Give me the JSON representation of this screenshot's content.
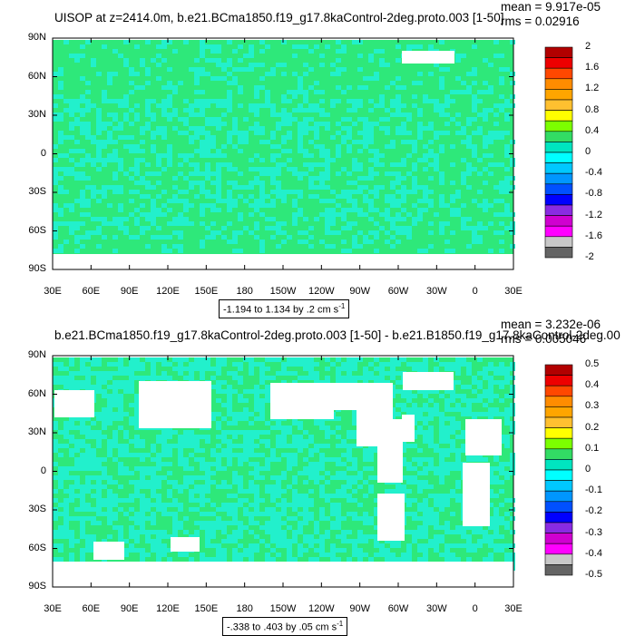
{
  "chart_data": [
    {
      "type": "heatmap",
      "title": "UISOP at z=2414.0m, b.e21.BCma1850.f19_g17.8kaControl-2deg.proto.003 [1-50]",
      "stat_mean": "mean = 9.917e-05",
      "stat_rms": "rms = 0.02916",
      "y_ticks": [
        "90N",
        "60N",
        "30N",
        "0",
        "30S",
        "60S",
        "90S"
      ],
      "x_ticks": [
        "30E",
        "60E",
        "90E",
        "120E",
        "150E",
        "180",
        "150W",
        "120W",
        "90W",
        "60W",
        "30W",
        "0",
        "30E"
      ],
      "colorbar_labels": [
        "2",
        "1.6",
        "1.2",
        "0.8",
        "0.4",
        "0",
        "-0.4",
        "-0.8",
        "-1.2",
        "-1.6",
        "-2"
      ],
      "colorbar_levels": [
        2,
        1.6,
        1.2,
        0.8,
        0.4,
        0,
        -0.4,
        -0.8,
        -1.2,
        -1.6,
        -2
      ],
      "contour_info": "-1.194 to 1.134 by .2 cm s",
      "units_superscript": "-1",
      "dominant_values": [
        "0 (green)",
        "-0.4 to 0 (cyan)"
      ]
    },
    {
      "type": "heatmap",
      "title": "b.e21.BCma1850.f19_g17.8kaControl-2deg.proto.003 [1-50] - b.e21.B1850.f19_g17.8kaControl-2deg.00",
      "stat_mean": "mean = 3.232e-06",
      "stat_rms": "rms = 0.005046",
      "y_ticks": [
        "90N",
        "60N",
        "30N",
        "0",
        "30S",
        "60S",
        "90S"
      ],
      "x_ticks": [
        "30E",
        "60E",
        "90E",
        "120E",
        "150E",
        "180",
        "150W",
        "120W",
        "90W",
        "60W",
        "30W",
        "0",
        "30E"
      ],
      "colorbar_labels": [
        "0.5",
        "0.4",
        "0.3",
        "0.2",
        "0.1",
        "0",
        "-0.1",
        "-0.2",
        "-0.3",
        "-0.4",
        "-0.5"
      ],
      "colorbar_levels": [
        0.5,
        0.4,
        0.3,
        0.2,
        0.1,
        0,
        -0.1,
        -0.2,
        -0.3,
        -0.4,
        -0.5
      ],
      "contour_info": "-.338 to .403 by .05 cm s",
      "units_superscript": "-1",
      "dominant_values": [
        "0 (green)",
        "-0.1 to 0 (cyan)"
      ]
    }
  ],
  "colors": {
    "palette": [
      "#b20000",
      "#ee0000",
      "#ff4800",
      "#ff8c00",
      "#ffa500",
      "#ffc030",
      "#ffff00",
      "#7cff00",
      "#32dc64",
      "#00e5c0",
      "#00ffff",
      "#00c8ff",
      "#0096ff",
      "#0050ff",
      "#0000ff",
      "#8a2be2",
      "#d000d0",
      "#ff00ff",
      "#c8c8c8",
      "#646464"
    ],
    "green": "#2ee87a",
    "cyan": "#22f0cc",
    "land": "#ffffff"
  }
}
